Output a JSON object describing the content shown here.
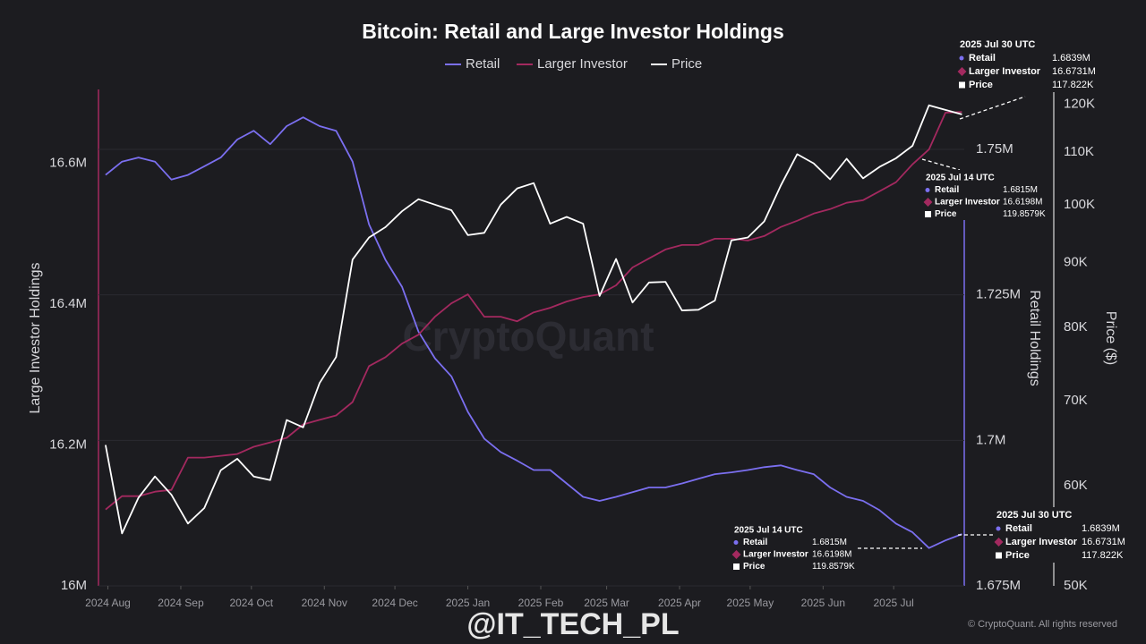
{
  "chart_data": {
    "type": "line",
    "title": "Bitcoin: Retail and Large Investor Holdings",
    "watermark": "CryptoQuant",
    "footer": "@IT_TECH_PL",
    "copyright": "© CryptoQuant. All rights reserved",
    "ylabel": "Large Investor Holdings",
    "y2label": "Retail Holdings",
    "y3label": "Price ($)",
    "grid_axis": "y2",
    "y3scale": "log",
    "x": [
      "2024-07-31",
      "2024-08-07",
      "2024-08-14",
      "2024-08-21",
      "2024-08-28",
      "2024-09-04",
      "2024-09-11",
      "2024-09-18",
      "2024-09-25",
      "2024-10-02",
      "2024-10-09",
      "2024-10-16",
      "2024-10-23",
      "2024-10-30",
      "2024-11-06",
      "2024-11-13",
      "2024-11-20",
      "2024-11-27",
      "2024-12-04",
      "2024-12-11",
      "2024-12-18",
      "2024-12-25",
      "2025-01-01",
      "2025-01-08",
      "2025-01-15",
      "2025-01-22",
      "2025-01-29",
      "2025-02-05",
      "2025-02-12",
      "2025-02-19",
      "2025-02-26",
      "2025-03-05",
      "2025-03-12",
      "2025-03-19",
      "2025-03-26",
      "2025-04-02",
      "2025-04-09",
      "2025-04-16",
      "2025-04-23",
      "2025-04-30",
      "2025-05-07",
      "2025-05-14",
      "2025-05-21",
      "2025-05-28",
      "2025-06-04",
      "2025-06-11",
      "2025-06-18",
      "2025-06-25",
      "2025-07-02",
      "2025-07-09",
      "2025-07-16",
      "2025-07-23",
      "2025-07-30"
    ],
    "xlim": [
      "2024-07-28",
      "2025-07-31"
    ],
    "xticks": [
      {
        "value": "2024-08-01",
        "label": "2024 Aug"
      },
      {
        "value": "2024-09-01",
        "label": "2024 Sep"
      },
      {
        "value": "2024-10-01",
        "label": "2024 Oct"
      },
      {
        "value": "2024-11-01",
        "label": "2024 Nov"
      },
      {
        "value": "2024-12-01",
        "label": "2024 Dec"
      },
      {
        "value": "2025-01-01",
        "label": "2025 Jan"
      },
      {
        "value": "2025-02-01",
        "label": "2025 Feb"
      },
      {
        "value": "2025-03-01",
        "label": "2025 Mar"
      },
      {
        "value": "2025-04-01",
        "label": "2025 Apr"
      },
      {
        "value": "2025-05-01",
        "label": "2025 May"
      },
      {
        "value": "2025-06-01",
        "label": "2025 Jun"
      },
      {
        "value": "2025-07-01",
        "label": "2025 Jul"
      }
    ],
    "ylim": [
      16000000,
      16705000
    ],
    "yticks": [
      {
        "value": 16000000,
        "label": "16M"
      },
      {
        "value": 16200000,
        "label": "16.2M"
      },
      {
        "value": 16400000,
        "label": "16.4M"
      },
      {
        "value": 16600000,
        "label": "16.6M"
      }
    ],
    "y2lim": [
      1675000,
      1760300
    ],
    "y2ticks": [
      {
        "value": 1675000,
        "label": "1.675M"
      },
      {
        "value": 1700000,
        "label": "1.7M"
      },
      {
        "value": 1725000,
        "label": "1.725M"
      },
      {
        "value": 1750000,
        "label": "1.75M"
      }
    ],
    "y3lim": [
      50000,
      123300
    ],
    "y3ticks": [
      {
        "value": 50000,
        "label": "50K"
      },
      {
        "value": 60000,
        "label": "60K"
      },
      {
        "value": 70000,
        "label": "70K"
      },
      {
        "value": 80000,
        "label": "80K"
      },
      {
        "value": 90000,
        "label": "90K"
      },
      {
        "value": 100000,
        "label": "100K"
      },
      {
        "value": 110000,
        "label": "110K"
      },
      {
        "value": 120000,
        "label": "120K"
      }
    ],
    "series": [
      {
        "name": "Retail",
        "color": "#7b6ff0",
        "axis": "y2",
        "values": [
          1745600,
          1747900,
          1748600,
          1747900,
          1744800,
          1745600,
          1747100,
          1748600,
          1751700,
          1753200,
          1750900,
          1754000,
          1755500,
          1754000,
          1753200,
          1747900,
          1737100,
          1731000,
          1726400,
          1718700,
          1714100,
          1711000,
          1704900,
          1700300,
          1698000,
          1696500,
          1694900,
          1694900,
          1692600,
          1690300,
          1689600,
          1690300,
          1691100,
          1691900,
          1691900,
          1692600,
          1693400,
          1694200,
          1694500,
          1694900,
          1695400,
          1695700,
          1694900,
          1694200,
          1691900,
          1690300,
          1689600,
          1688000,
          1685700,
          1684200,
          1681500,
          1682800,
          1683900
        ]
      },
      {
        "name": "Larger Investor",
        "color": "#a3295f",
        "axis": "y",
        "values": [
          16108300,
          16127400,
          16127400,
          16133800,
          16136300,
          16182200,
          16182200,
          16184700,
          16187300,
          16197500,
          16203800,
          16210200,
          16229300,
          16235700,
          16242000,
          16261100,
          16312100,
          16324800,
          16344000,
          16356700,
          16382200,
          16401300,
          16414000,
          16382200,
          16382200,
          16375800,
          16388500,
          16394900,
          16403800,
          16410200,
          16414000,
          16426800,
          16452200,
          16465000,
          16477700,
          16484100,
          16484100,
          16493000,
          16493000,
          16490500,
          16496800,
          16509600,
          16518500,
          16528700,
          16535000,
          16544000,
          16547800,
          16560500,
          16573300,
          16598700,
          16619800,
          16672000,
          16673100
        ]
      },
      {
        "name": "Price",
        "color": "#ffffff",
        "axis": "y3",
        "values": [
          64600,
          55000,
          58700,
          61000,
          59000,
          56000,
          57600,
          61700,
          63000,
          61000,
          60600,
          67600,
          66700,
          72300,
          75800,
          90500,
          94200,
          96000,
          98800,
          101000,
          100000,
          99000,
          94600,
          95000,
          100000,
          103000,
          104000,
          96600,
          97800,
          96600,
          84700,
          90600,
          83700,
          86800,
          86900,
          82500,
          82600,
          84000,
          93700,
          94200,
          97000,
          103500,
          109600,
          107800,
          104700,
          108700,
          104900,
          107100,
          108800,
          111300,
          119800,
          118800,
          117822
        ]
      }
    ],
    "annotations": [
      {
        "title": "2025 Jul 30 UTC",
        "rows": [
          {
            "label": "Retail",
            "value": "1.6839M"
          },
          {
            "label": "Larger Investor",
            "value": "16.6731M"
          },
          {
            "label": "Price",
            "value": "117.822K"
          }
        ]
      },
      {
        "title": "2025 Jul 14 UTC",
        "rows": [
          {
            "label": "Retail",
            "value": "1.6815M"
          },
          {
            "label": "Larger Investor",
            "value": "16.6198M"
          },
          {
            "label": "Price",
            "value": "119.8579K"
          }
        ]
      },
      {
        "title": "2025 Jul 14 UTC",
        "rows": [
          {
            "label": "Retail",
            "value": "1.6815M"
          },
          {
            "label": "Larger Investor",
            "value": "16.6198M"
          },
          {
            "label": "Price",
            "value": "119.8579K"
          }
        ]
      },
      {
        "title": "2025 Jul 30 UTC",
        "rows": [
          {
            "label": "Retail",
            "value": "1.6839M"
          },
          {
            "label": "Larger Investor",
            "value": "16.6731M"
          },
          {
            "label": "Price",
            "value": "117.822K"
          }
        ]
      }
    ]
  }
}
